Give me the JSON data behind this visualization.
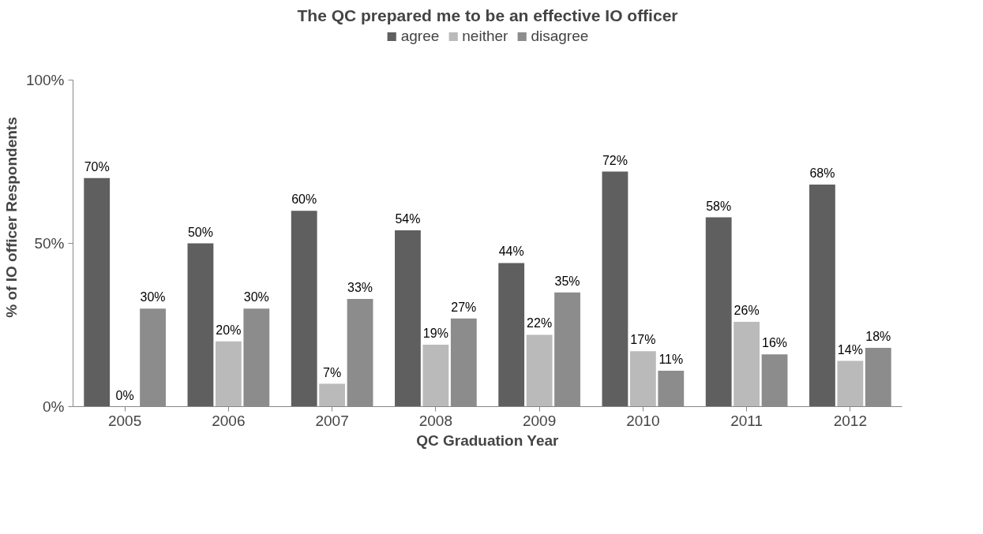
{
  "chart_data": {
    "type": "bar",
    "title": "The QC prepared me to be an effective IO officer",
    "xlabel": "QC Graduation Year",
    "ylabel": "% of IO officer Respondents",
    "categories": [
      "2005",
      "2006",
      "2007",
      "2008",
      "2009",
      "2010",
      "2011",
      "2012"
    ],
    "series": [
      {
        "name": "agree",
        "color": "#5f5f5f",
        "values": [
          70,
          50,
          60,
          54,
          44,
          72,
          58,
          68
        ],
        "value_labels": [
          "70%",
          "50%",
          "60%",
          "54%",
          "44%",
          "72%",
          "58%",
          "68%"
        ]
      },
      {
        "name": "neither",
        "color": "#bababa",
        "values": [
          0,
          20,
          7,
          19,
          22,
          17,
          26,
          14
        ],
        "value_labels": [
          "0%",
          "20%",
          "7%",
          "19%",
          "22%",
          "17%",
          "26%",
          "14%"
        ]
      },
      {
        "name": "disagree",
        "color": "#8c8c8c",
        "values": [
          30,
          30,
          33,
          27,
          35,
          11,
          16,
          18
        ],
        "value_labels": [
          "30%",
          "30%",
          "33%",
          "27%",
          "35%",
          "11%",
          "16%",
          "18%"
        ]
      }
    ],
    "ylim": [
      0,
      100
    ],
    "yticks": [
      {
        "value": 0,
        "label": "0%"
      },
      {
        "value": 50,
        "label": "50%"
      },
      {
        "value": 100,
        "label": "100%"
      }
    ],
    "legend": "top",
    "grid": false
  }
}
